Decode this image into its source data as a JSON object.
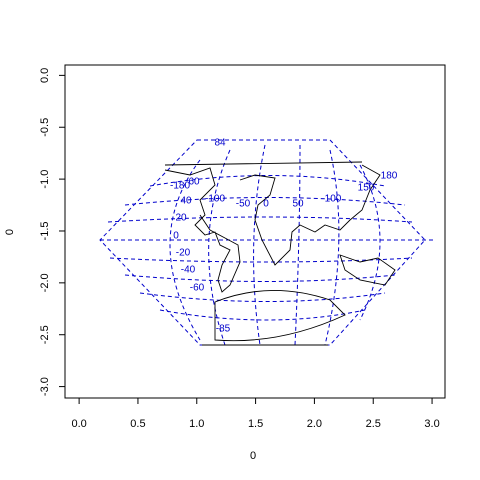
{
  "chart_data": {
    "type": "map",
    "xlabel": "0",
    "ylabel": "0",
    "xlim": [
      -0.12,
      3.11
    ],
    "ylim": [
      -3.11,
      0.1
    ],
    "xticks": [
      {
        "value": 0,
        "label": "0.0"
      },
      {
        "value": 0.5,
        "label": "0.5"
      },
      {
        "value": 1,
        "label": "1.0"
      },
      {
        "value": 1.5,
        "label": "1.5"
      },
      {
        "value": 2,
        "label": "2.0"
      },
      {
        "value": 2.5,
        "label": "2.5"
      },
      {
        "value": 3,
        "label": "3.0"
      }
    ],
    "yticks": [
      {
        "value": 0,
        "label": "0.0"
      },
      {
        "value": -0.5,
        "label": "-0.5"
      },
      {
        "value": -1,
        "label": "-1.0"
      },
      {
        "value": -1.5,
        "label": "-1.5"
      },
      {
        "value": -2,
        "label": "-2.0"
      },
      {
        "value": -2.5,
        "label": "-2.5"
      },
      {
        "value": -3,
        "label": "-3.0"
      }
    ],
    "annotations": [
      "84",
      "-180",
      "60",
      "-100",
      "-50",
      "0",
      "50",
      "100",
      "150",
      "180",
      "40",
      "20",
      "0",
      "-20",
      "-40",
      "-60",
      "-85"
    ]
  }
}
